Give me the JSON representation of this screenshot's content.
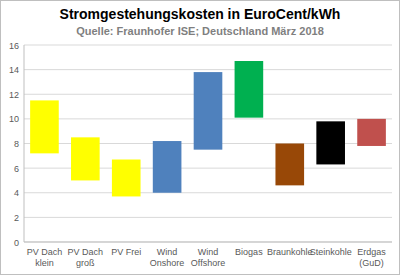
{
  "chart_data": {
    "type": "floating_bar",
    "title": "Stromgestehungskosten in EuroCent/kWh",
    "subtitle": "Quelle: Fraunhofer ISE; Deutschland März 2018",
    "categories": [
      "PV Dach klein",
      "PV Dach groß",
      "PV Frei",
      "Wind Onshore",
      "Wind Offshore",
      "Biogas",
      "Braunkohle",
      "Steinkohle",
      "Erdgas (GuD)"
    ],
    "values": [
      [
        7.2,
        11.5
      ],
      [
        5.0,
        8.5
      ],
      [
        3.7,
        6.7
      ],
      [
        4.0,
        8.2
      ],
      [
        7.5,
        13.8
      ],
      [
        10.1,
        14.7
      ],
      [
        4.6,
        8.0
      ],
      [
        6.3,
        9.8
      ],
      [
        7.8,
        10.0
      ]
    ],
    "colors": [
      "#ffff00",
      "#ffff00",
      "#ffff00",
      "#4f81bd",
      "#4f81bd",
      "#00b050",
      "#984807",
      "#000000",
      "#c0504d"
    ],
    "ylim": [
      0,
      16
    ],
    "yticks": [
      0,
      2,
      4,
      6,
      8,
      10,
      12,
      14,
      16
    ],
    "grid": true
  }
}
